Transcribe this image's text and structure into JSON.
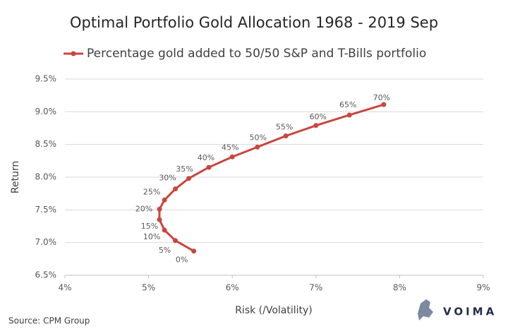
{
  "chart_data": {
    "type": "line",
    "title": "Optimal Portfolio Gold Allocation 1968 - 2019 Sep",
    "x_label": "Risk (/Volatility)",
    "y_label": "Return",
    "source": "Source: CPM Group",
    "logo": "VOIMA",
    "series": [
      {
        "name": "Percentage gold added to 50/50 S&P and T-Bills portfolio",
        "color": "#c8463f",
        "x": [
          5.54,
          5.32,
          5.19,
          5.13,
          5.13,
          5.19,
          5.32,
          5.48,
          5.72,
          6.0,
          6.3,
          6.64,
          7.0,
          7.4,
          7.81
        ],
        "values": [
          6.87,
          7.03,
          7.19,
          7.35,
          7.51,
          7.65,
          7.82,
          7.98,
          8.15,
          8.31,
          8.46,
          8.63,
          8.79,
          8.95,
          9.11
        ],
        "point_labels": [
          "0%",
          "5%",
          "10%",
          "15%",
          "20%",
          "25%",
          "30%",
          "35%",
          "40%",
          "45%",
          "50%",
          "55%",
          "60%",
          "65%",
          "70%"
        ]
      }
    ],
    "xlim": [
      4,
      9
    ],
    "xticks": [
      {
        "value": 4,
        "label": "4%"
      },
      {
        "value": 5,
        "label": "5%"
      },
      {
        "value": 6,
        "label": "6%"
      },
      {
        "value": 7,
        "label": "7%"
      },
      {
        "value": 8,
        "label": "8%"
      },
      {
        "value": 9,
        "label": "9%"
      }
    ],
    "ylim": [
      6.5,
      9.5
    ],
    "yticks": [
      {
        "value": 6.5,
        "label": "6.5%"
      },
      {
        "value": 7.0,
        "label": "7.0%"
      },
      {
        "value": 7.5,
        "label": "7.5%"
      },
      {
        "value": 8.0,
        "label": "8.0%"
      },
      {
        "value": 8.5,
        "label": "8.5%"
      },
      {
        "value": 9.0,
        "label": "9.0%"
      },
      {
        "value": 9.5,
        "label": "9.5%"
      }
    ],
    "grid": true,
    "legend": "top"
  }
}
